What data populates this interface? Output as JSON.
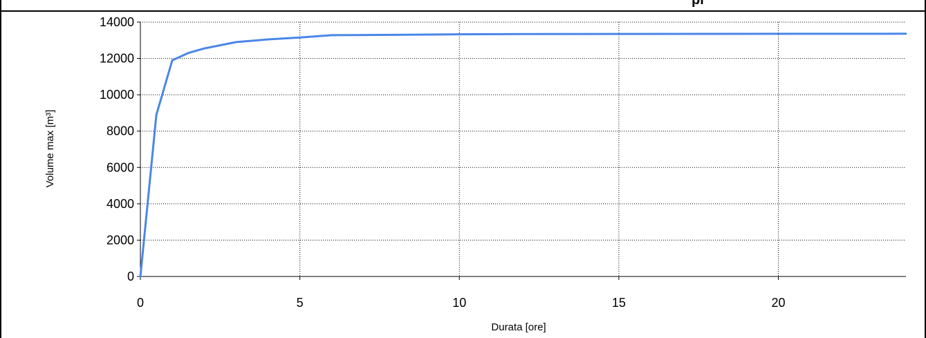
{
  "chart_data": {
    "type": "line",
    "title": "",
    "title_partial": "pi",
    "xlabel": "Durata [ore]",
    "ylabel": "Volume max [m³]",
    "xlim": [
      0,
      24
    ],
    "ylim": [
      0,
      14000
    ],
    "x_ticks": [
      0,
      5,
      10,
      15,
      20
    ],
    "y_ticks": [
      0,
      2000,
      4000,
      6000,
      8000,
      10000,
      12000,
      14000
    ],
    "grid": true,
    "legend": "none",
    "series": [
      {
        "color": "#4a86e8",
        "points": [
          [
            0,
            0
          ],
          [
            0.5,
            8900
          ],
          [
            1,
            11900
          ],
          [
            1.5,
            12300
          ],
          [
            2,
            12550
          ],
          [
            3,
            12900
          ],
          [
            4,
            13050
          ],
          [
            5,
            13150
          ],
          [
            6,
            13280
          ],
          [
            8,
            13300
          ],
          [
            10,
            13330
          ],
          [
            12,
            13345
          ],
          [
            15,
            13350
          ],
          [
            18,
            13355
          ],
          [
            21,
            13358
          ],
          [
            24,
            13360
          ]
        ]
      }
    ]
  },
  "colors": {
    "frame": "#000000",
    "grid": "#000000",
    "line": "#4a86e8"
  }
}
